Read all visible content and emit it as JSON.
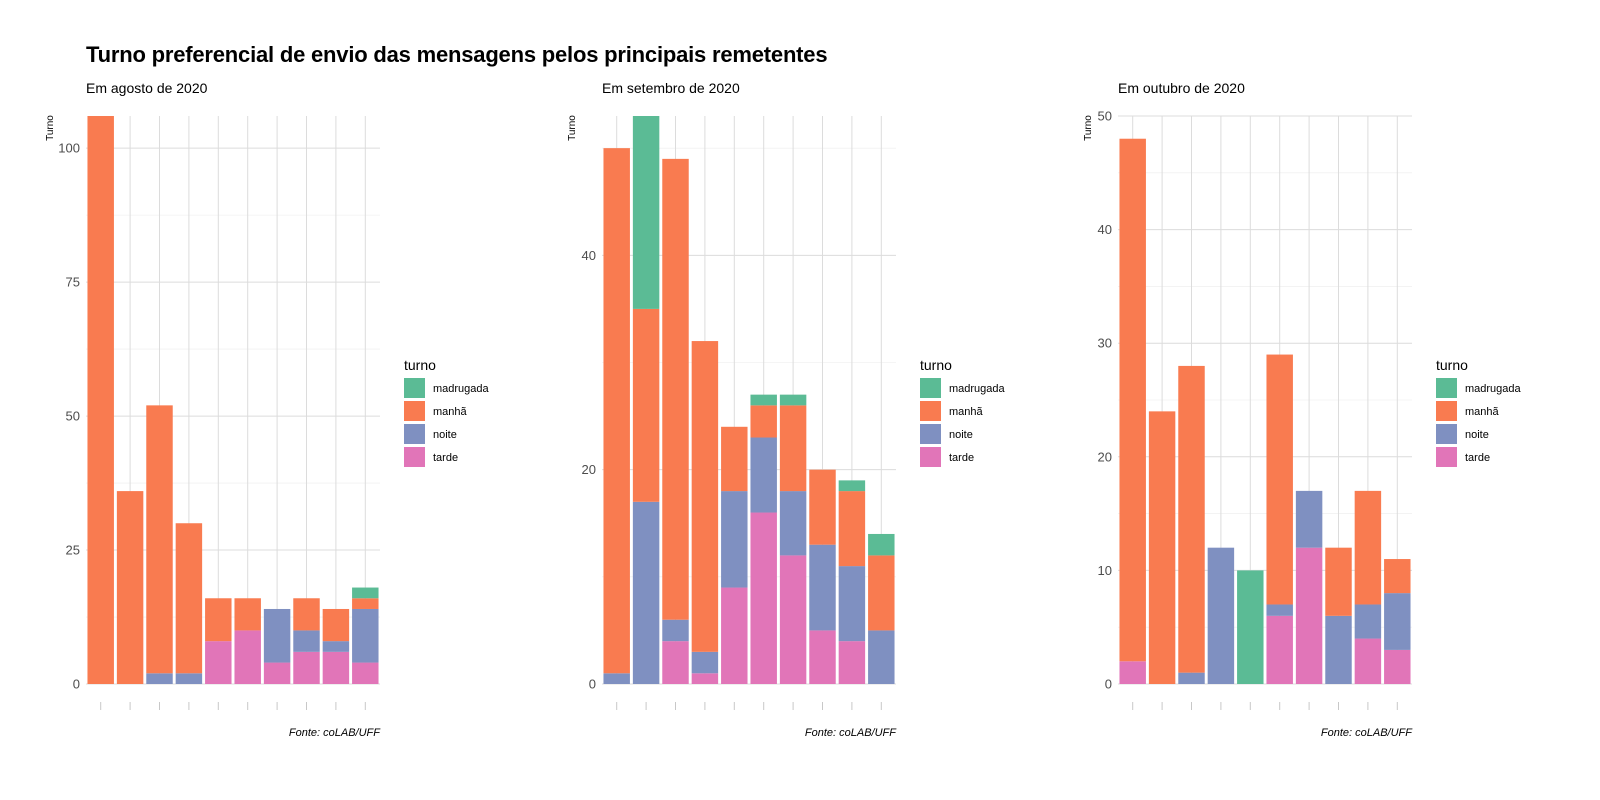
{
  "title": "Turno preferencial de envio das mensagens pelos principais remetentes",
  "colors": {
    "madrugada": "#5bbb95",
    "manhã": "#f97b50",
    "noite": "#7f90c1",
    "tarde": "#e175b8",
    "grid": "#dcdcdc"
  },
  "legend": {
    "title": "turno",
    "items": [
      "madrugada",
      "manhã",
      "noite",
      "tarde"
    ]
  },
  "chart_data": [
    {
      "type": "bar",
      "stacked": true,
      "subtitle": "Em agosto de 2020",
      "ylabel": "Turno",
      "caption": "Fonte: coLAB/UFF",
      "ylim": [
        0,
        106
      ],
      "yticks": [
        0,
        25,
        50,
        75,
        100
      ],
      "legend_position": "right",
      "series": [
        {
          "name": "tarde",
          "values": [
            0,
            0,
            0,
            0,
            8,
            10,
            4,
            6,
            6,
            4
          ]
        },
        {
          "name": "noite",
          "values": [
            0,
            0,
            2,
            2,
            0,
            0,
            10,
            4,
            2,
            10
          ]
        },
        {
          "name": "manhã",
          "values": [
            106,
            36,
            50,
            28,
            8,
            6,
            0,
            6,
            6,
            2
          ]
        },
        {
          "name": "madrugada",
          "values": [
            0,
            0,
            0,
            0,
            0,
            0,
            0,
            0,
            0,
            2
          ]
        }
      ]
    },
    {
      "type": "bar",
      "stacked": true,
      "subtitle": "Em setembro de 2020",
      "ylabel": "Turno",
      "caption": "Fonte: coLAB/UFF",
      "ylim": [
        0,
        53
      ],
      "yticks": [
        0,
        20,
        40
      ],
      "legend_position": "right",
      "series": [
        {
          "name": "tarde",
          "values": [
            0,
            0,
            4,
            1,
            9,
            16,
            12,
            5,
            4,
            0
          ]
        },
        {
          "name": "noite",
          "values": [
            1,
            17,
            2,
            2,
            9,
            7,
            6,
            8,
            7,
            5
          ]
        },
        {
          "name": "manhã",
          "values": [
            49,
            18,
            43,
            29,
            6,
            3,
            8,
            7,
            7,
            7
          ]
        },
        {
          "name": "madrugada",
          "values": [
            0,
            18,
            0,
            0,
            0,
            1,
            1,
            0,
            1,
            2
          ]
        }
      ]
    },
    {
      "type": "bar",
      "stacked": true,
      "subtitle": "Em outubro de 2020",
      "ylabel": "Turno",
      "caption": "Fonte: coLAB/UFF",
      "ylim": [
        0,
        50
      ],
      "yticks": [
        0,
        10,
        20,
        30,
        40,
        50
      ],
      "legend_position": "right",
      "series": [
        {
          "name": "tarde",
          "values": [
            2,
            0,
            0,
            0,
            0,
            6,
            12,
            0,
            4,
            3
          ]
        },
        {
          "name": "noite",
          "values": [
            0,
            0,
            1,
            12,
            0,
            1,
            5,
            6,
            3,
            5
          ]
        },
        {
          "name": "manhã",
          "values": [
            46,
            24,
            27,
            0,
            0,
            22,
            0,
            6,
            10,
            3
          ]
        },
        {
          "name": "madrugada",
          "values": [
            0,
            0,
            0,
            0,
            10,
            0,
            0,
            0,
            0,
            0
          ]
        }
      ]
    }
  ]
}
